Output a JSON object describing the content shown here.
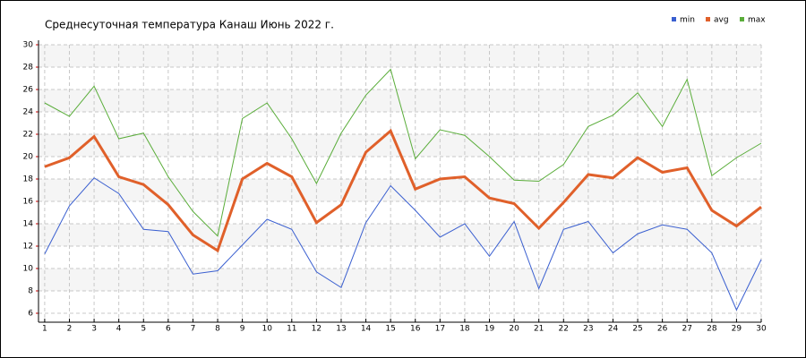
{
  "chart_data": {
    "type": "line",
    "title": "Среднесуточная температура Канаш  Июнь 2022 г.",
    "x": [
      1,
      2,
      3,
      4,
      5,
      6,
      7,
      8,
      9,
      10,
      11,
      12,
      13,
      14,
      15,
      16,
      17,
      18,
      19,
      20,
      21,
      22,
      23,
      24,
      25,
      26,
      27,
      28,
      29,
      30
    ],
    "series": [
      {
        "name": "min",
        "color": "#3a5fd0",
        "values": [
          11.3,
          15.6,
          18.1,
          16.7,
          13.5,
          13.3,
          9.5,
          9.8,
          12.1,
          14.4,
          13.5,
          9.7,
          8.3,
          14.1,
          17.4,
          15.2,
          12.8,
          14.0,
          11.1,
          14.2,
          8.2,
          13.5,
          14.2,
          11.4,
          13.1,
          13.9,
          13.5,
          11.4,
          6.3,
          10.8
        ]
      },
      {
        "name": "avg",
        "color": "#e0602a",
        "values": [
          19.1,
          19.9,
          21.8,
          18.2,
          17.5,
          15.7,
          13.0,
          11.6,
          18.0,
          19.4,
          18.2,
          14.1,
          15.7,
          20.4,
          22.3,
          17.1,
          18.0,
          18.2,
          16.3,
          15.8,
          13.6,
          15.9,
          18.4,
          18.1,
          19.9,
          18.6,
          19.0,
          15.2,
          13.8,
          15.5
        ]
      },
      {
        "name": "max",
        "color": "#5aad3a",
        "values": [
          24.8,
          23.6,
          26.3,
          21.6,
          22.1,
          18.2,
          15.1,
          12.9,
          23.4,
          24.8,
          21.6,
          17.6,
          22.1,
          25.5,
          27.8,
          19.8,
          22.4,
          21.9,
          20.0,
          17.9,
          17.8,
          19.3,
          22.7,
          23.7,
          25.7,
          22.7,
          26.9,
          18.3,
          19.9,
          21.2
        ]
      }
    ],
    "xlim": [
      0.75,
      30
    ],
    "xticks": [
      1,
      2,
      3,
      4,
      5,
      6,
      7,
      8,
      9,
      10,
      11,
      12,
      13,
      14,
      15,
      16,
      17,
      18,
      19,
      20,
      21,
      22,
      23,
      24,
      25,
      26,
      27,
      28,
      29,
      30
    ],
    "ylim": [
      5.2,
      30
    ],
    "yticks": [
      6,
      8,
      10,
      12,
      14,
      16,
      18,
      20,
      22,
      24,
      26,
      28,
      30
    ],
    "grid": true,
    "legend": "top-right"
  }
}
